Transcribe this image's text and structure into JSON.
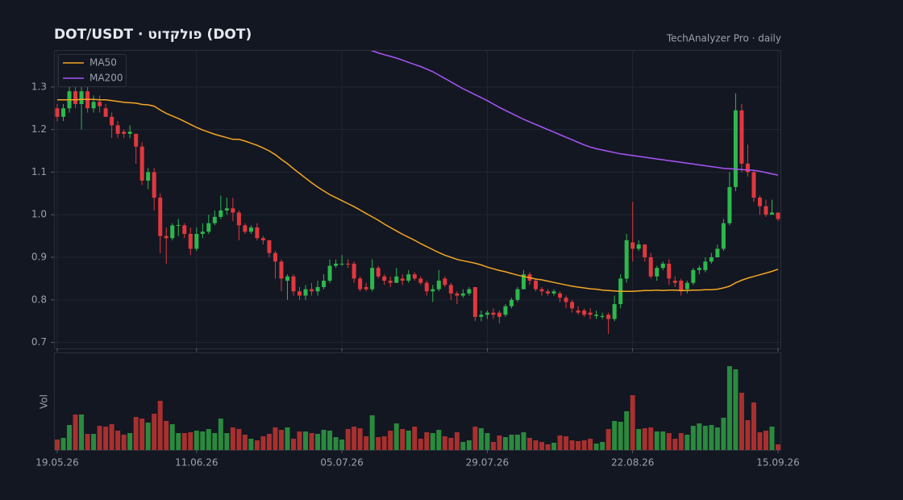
{
  "chart_data": {
    "type": "candlestick",
    "title": "DOT/USDT  ·  פולקדוט (DOT)",
    "subtitle": "TechAnalyzer Pro · daily",
    "categories": [
      "19.05.26",
      "20.05.26",
      "21.05.26",
      "22.05.26",
      "23.05.26",
      "24.05.26",
      "25.05.26",
      "26.05.26",
      "27.05.26",
      "28.05.26",
      "29.05.26",
      "30.05.26",
      "31.05.26",
      "01.06.26",
      "02.06.26",
      "03.06.26",
      "04.06.26",
      "05.06.26",
      "06.06.26",
      "07.06.26",
      "08.06.26",
      "09.06.26",
      "10.06.26",
      "11.06.26",
      "12.06.26",
      "13.06.26",
      "14.06.26",
      "15.06.26",
      "16.06.26",
      "17.06.26",
      "18.06.26",
      "19.06.26",
      "20.06.26",
      "21.06.26",
      "22.06.26",
      "23.06.26",
      "24.06.26",
      "25.06.26",
      "26.06.26",
      "27.06.26",
      "28.06.26",
      "29.06.26",
      "30.06.26",
      "01.07.26",
      "02.07.26",
      "03.07.26",
      "04.07.26",
      "05.07.26",
      "06.07.26",
      "07.07.26",
      "08.07.26",
      "09.07.26",
      "10.07.26",
      "11.07.26",
      "12.07.26",
      "13.07.26",
      "14.07.26",
      "15.07.26",
      "16.07.26",
      "17.07.26",
      "18.07.26",
      "19.07.26",
      "20.07.26",
      "21.07.26",
      "22.07.26",
      "23.07.26",
      "24.07.26",
      "25.07.26",
      "26.07.26",
      "27.07.26",
      "28.07.26",
      "29.07.26",
      "30.07.26",
      "31.07.26",
      "01.08.26",
      "02.08.26",
      "03.08.26",
      "04.08.26",
      "05.08.26",
      "06.08.26",
      "07.08.26",
      "08.08.26",
      "09.08.26",
      "10.08.26",
      "11.08.26",
      "12.08.26",
      "13.08.26",
      "14.08.26",
      "15.08.26",
      "16.08.26",
      "17.08.26",
      "18.08.26",
      "19.08.26",
      "20.08.26",
      "21.08.26",
      "22.08.26",
      "23.08.26",
      "24.08.26",
      "25.08.26",
      "26.08.26",
      "27.08.26",
      "28.08.26",
      "29.08.26",
      "30.08.26",
      "31.08.26",
      "01.09.26",
      "02.09.26",
      "03.09.26",
      "04.09.26",
      "05.09.26",
      "06.09.26",
      "07.09.26",
      "08.09.26",
      "09.09.26",
      "10.09.26",
      "11.09.26",
      "12.09.26",
      "13.09.26",
      "14.09.26",
      "15.09.26"
    ],
    "xticks": [
      "19.05.26",
      "11.06.26",
      "05.07.26",
      "29.07.26",
      "22.08.26",
      "15.09.26"
    ],
    "ylim": [
      0.686,
      1.385
    ],
    "yticks": [
      0.7,
      0.8,
      0.9,
      {
        "value": 1,
        "label": "1.0"
      },
      1.1,
      1.2,
      1.3
    ],
    "grid": true,
    "up_color": "#2db84d",
    "down_color": "#e0383e",
    "open": [
      1.25,
      1.23,
      1.25,
      1.29,
      1.26,
      1.29,
      1.25,
      1.265,
      1.25,
      1.23,
      1.21,
      1.195,
      1.19,
      1.19,
      1.16,
      1.08,
      1.1,
      1.04,
      0.95,
      0.945,
      0.975,
      0.975,
      0.955,
      0.92,
      0.955,
      0.96,
      0.98,
      0.995,
      1.01,
      1.015,
      1.005,
      0.975,
      0.96,
      0.97,
      0.945,
      0.94,
      0.91,
      0.89,
      0.845,
      0.855,
      0.82,
      0.81,
      0.825,
      0.82,
      0.83,
      0.845,
      0.88,
      0.885,
      0.885,
      0.885,
      0.85,
      0.83,
      0.825,
      0.875,
      0.855,
      0.845,
      0.84,
      0.85,
      0.845,
      0.86,
      0.85,
      0.84,
      0.82,
      0.825,
      0.85,
      0.835,
      0.815,
      0.81,
      0.815,
      0.83,
      0.76,
      0.765,
      0.77,
      0.77,
      0.765,
      0.785,
      0.8,
      0.825,
      0.86,
      0.845,
      0.825,
      0.82,
      0.815,
      0.815,
      0.805,
      0.795,
      0.775,
      0.775,
      0.77,
      0.762,
      0.76,
      0.765,
      0.755,
      0.79,
      0.85,
      0.935,
      0.92,
      0.93,
      0.9,
      0.855,
      0.875,
      0.885,
      0.845,
      0.845,
      0.825,
      0.84,
      0.87,
      0.87,
      0.89,
      0.9,
      0.92,
      0.98,
      1.065,
      1.245,
      1.12,
      1.1,
      1.04,
      1.02,
      1.0,
      1.005
    ],
    "high": [
      1.26,
      1.26,
      1.3,
      1.3,
      1.3,
      1.3,
      1.28,
      1.28,
      1.26,
      1.24,
      1.22,
      1.2,
      1.21,
      1.19,
      1.17,
      1.11,
      1.11,
      1.05,
      0.97,
      0.98,
      0.99,
      0.98,
      0.97,
      0.97,
      0.98,
      1.0,
      1.01,
      1.045,
      1.04,
      1.04,
      1.01,
      0.98,
      0.975,
      0.98,
      0.95,
      0.94,
      0.915,
      0.895,
      0.86,
      0.86,
      0.83,
      0.835,
      0.84,
      0.845,
      0.86,
      0.895,
      0.895,
      0.905,
      0.895,
      0.89,
      0.855,
      0.84,
      0.895,
      0.88,
      0.86,
      0.855,
      0.875,
      0.86,
      0.87,
      0.865,
      0.855,
      0.845,
      0.835,
      0.87,
      0.855,
      0.84,
      0.82,
      0.825,
      0.83,
      0.83,
      0.775,
      0.775,
      0.78,
      0.775,
      0.79,
      0.805,
      0.83,
      0.87,
      0.865,
      0.85,
      0.83,
      0.825,
      0.825,
      0.82,
      0.81,
      0.8,
      0.785,
      0.78,
      0.78,
      0.775,
      0.77,
      0.77,
      0.81,
      0.86,
      0.955,
      1.03,
      0.94,
      0.93,
      0.91,
      0.88,
      0.89,
      0.895,
      0.855,
      0.85,
      0.845,
      0.875,
      0.88,
      0.9,
      0.91,
      0.93,
      0.99,
      1.1,
      1.285,
      1.26,
      1.165,
      1.105,
      1.045,
      1.035,
      1.035,
      1.005
    ],
    "low": [
      1.22,
      1.22,
      1.24,
      1.25,
      1.2,
      1.24,
      1.24,
      1.24,
      1.23,
      1.18,
      1.18,
      1.18,
      1.18,
      1.12,
      1.07,
      1.06,
      1.01,
      0.91,
      0.885,
      0.94,
      0.95,
      0.945,
      0.905,
      0.915,
      0.945,
      0.955,
      0.975,
      0.99,
      1.0,
      0.985,
      0.94,
      0.955,
      0.955,
      0.94,
      0.93,
      0.9,
      0.85,
      0.82,
      0.8,
      0.81,
      0.8,
      0.8,
      0.81,
      0.81,
      0.825,
      0.84,
      0.875,
      0.88,
      0.875,
      0.84,
      0.82,
      0.82,
      0.82,
      0.85,
      0.835,
      0.83,
      0.84,
      0.835,
      0.84,
      0.845,
      0.835,
      0.81,
      0.795,
      0.82,
      0.83,
      0.8,
      0.79,
      0.805,
      0.81,
      0.75,
      0.75,
      0.755,
      0.755,
      0.745,
      0.76,
      0.78,
      0.795,
      0.825,
      0.835,
      0.82,
      0.81,
      0.81,
      0.81,
      0.795,
      0.78,
      0.77,
      0.765,
      0.76,
      0.755,
      0.755,
      0.755,
      0.72,
      0.75,
      0.78,
      0.84,
      0.89,
      0.915,
      0.89,
      0.85,
      0.845,
      0.87,
      0.835,
      0.83,
      0.81,
      0.815,
      0.835,
      0.86,
      0.865,
      0.885,
      0.9,
      0.915,
      0.975,
      1.055,
      1.1,
      1.09,
      1.03,
      1.0,
      0.995,
      1.0,
      0.985
    ],
    "close": [
      1.23,
      1.25,
      1.29,
      1.26,
      1.29,
      1.25,
      1.265,
      1.255,
      1.23,
      1.21,
      1.19,
      1.19,
      1.195,
      1.16,
      1.08,
      1.1,
      1.04,
      0.95,
      0.945,
      0.975,
      0.976,
      0.955,
      0.92,
      0.955,
      0.96,
      0.98,
      0.995,
      1.01,
      1.015,
      1.005,
      0.975,
      0.96,
      0.97,
      0.945,
      0.94,
      0.91,
      0.89,
      0.85,
      0.855,
      0.82,
      0.81,
      0.825,
      0.82,
      0.83,
      0.845,
      0.88,
      0.885,
      0.885,
      0.884,
      0.85,
      0.825,
      0.825,
      0.875,
      0.855,
      0.845,
      0.84,
      0.855,
      0.845,
      0.86,
      0.85,
      0.84,
      0.82,
      0.825,
      0.845,
      0.835,
      0.815,
      0.81,
      0.815,
      0.825,
      0.76,
      0.765,
      0.77,
      0.765,
      0.76,
      0.785,
      0.8,
      0.825,
      0.86,
      0.845,
      0.825,
      0.82,
      0.815,
      0.82,
      0.805,
      0.795,
      0.78,
      0.77,
      0.765,
      0.765,
      0.765,
      0.762,
      0.755,
      0.79,
      0.85,
      0.94,
      0.92,
      0.93,
      0.9,
      0.855,
      0.875,
      0.885,
      0.85,
      0.84,
      0.82,
      0.84,
      0.87,
      0.875,
      0.89,
      0.9,
      0.92,
      0.98,
      1.065,
      1.245,
      1.12,
      1.1,
      1.04,
      1.02,
      1.0,
      1.005,
      0.99
    ],
    "legend": "upper left",
    "series": [
      {
        "name": "MA50",
        "color": "#f5a623",
        "values": [
          1.27,
          1.27,
          1.27,
          1.27,
          1.271,
          1.271,
          1.271,
          1.27,
          1.27,
          1.268,
          1.266,
          1.264,
          1.263,
          1.262,
          1.259,
          1.258,
          1.255,
          1.246,
          1.238,
          1.232,
          1.226,
          1.219,
          1.212,
          1.205,
          1.199,
          1.194,
          1.189,
          1.185,
          1.181,
          1.177,
          1.177,
          1.173,
          1.168,
          1.163,
          1.157,
          1.15,
          1.141,
          1.13,
          1.12,
          1.108,
          1.097,
          1.086,
          1.075,
          1.065,
          1.056,
          1.047,
          1.04,
          1.033,
          1.026,
          1.019,
          1.011,
          1.003,
          0.995,
          0.987,
          0.978,
          0.97,
          0.962,
          0.954,
          0.947,
          0.94,
          0.932,
          0.925,
          0.918,
          0.911,
          0.905,
          0.9,
          0.895,
          0.892,
          0.889,
          0.886,
          0.882,
          0.877,
          0.873,
          0.869,
          0.866,
          0.862,
          0.858,
          0.855,
          0.852,
          0.849,
          0.847,
          0.844,
          0.841,
          0.838,
          0.835,
          0.832,
          0.83,
          0.828,
          0.826,
          0.825,
          0.823,
          0.822,
          0.821,
          0.82,
          0.82,
          0.82,
          0.821,
          0.822,
          0.822,
          0.823,
          0.822,
          0.823,
          0.823,
          0.822,
          0.822,
          0.823,
          0.823,
          0.824,
          0.824,
          0.825,
          0.828,
          0.832,
          0.84,
          0.846,
          0.851,
          0.855,
          0.859,
          0.863,
          0.867,
          0.872
        ]
      },
      {
        "name": "MA200",
        "color": "#a855f7",
        "values": [
          null,
          null,
          null,
          null,
          null,
          null,
          null,
          null,
          null,
          null,
          null,
          null,
          null,
          null,
          null,
          null,
          null,
          null,
          null,
          null,
          null,
          null,
          null,
          null,
          null,
          null,
          null,
          null,
          null,
          null,
          null,
          null,
          null,
          null,
          null,
          null,
          null,
          null,
          null,
          null,
          null,
          null,
          null,
          null,
          null,
          null,
          null,
          null,
          null,
          null,
          null,
          1.39,
          1.385,
          1.38,
          1.376,
          1.372,
          1.368,
          1.363,
          1.358,
          1.353,
          1.348,
          1.342,
          1.336,
          1.328,
          1.32,
          1.312,
          1.304,
          1.296,
          1.289,
          1.282,
          1.275,
          1.268,
          1.26,
          1.252,
          1.245,
          1.238,
          1.231,
          1.224,
          1.218,
          1.212,
          1.206,
          1.2,
          1.194,
          1.188,
          1.182,
          1.176,
          1.17,
          1.164,
          1.159,
          1.155,
          1.152,
          1.149,
          1.146,
          1.143,
          1.141,
          1.139,
          1.137,
          1.135,
          1.133,
          1.131,
          1.129,
          1.127,
          1.125,
          1.123,
          1.121,
          1.119,
          1.117,
          1.115,
          1.113,
          1.111,
          1.109,
          1.108,
          1.107,
          1.106,
          1.105,
          1.104,
          1.102,
          1.099,
          1.096,
          1.093
        ]
      }
    ],
    "volume": {
      "label": "Vol",
      "ylim": [
        0,
        120
      ],
      "up_color": "#2a8a3e",
      "down_color": "#a8302f",
      "values": [
        13,
        15,
        31,
        44,
        44,
        20,
        20,
        30,
        29,
        32,
        24,
        19,
        21,
        41,
        39,
        34,
        45,
        61,
        36,
        32,
        21,
        21,
        22,
        24,
        23,
        26,
        21,
        39,
        21,
        28,
        26,
        19,
        14,
        12,
        17,
        20,
        28,
        25,
        28,
        14,
        23,
        23,
        21,
        20,
        25,
        24,
        16,
        13,
        26,
        29,
        27,
        17,
        43,
        16,
        17,
        24,
        33,
        26,
        24,
        29,
        14,
        22,
        21,
        25,
        17,
        15,
        22,
        10,
        12,
        29,
        27,
        21,
        10,
        18,
        16,
        19,
        19,
        22,
        15,
        12,
        10,
        7,
        9,
        18,
        17,
        12,
        11,
        12,
        14,
        8,
        10,
        26,
        36,
        35,
        48,
        68,
        26,
        27,
        28,
        23,
        23,
        21,
        14,
        21,
        19,
        30,
        33,
        30,
        31,
        28,
        40,
        104,
        100,
        71,
        37,
        59,
        22,
        24,
        29,
        7
      ]
    }
  }
}
